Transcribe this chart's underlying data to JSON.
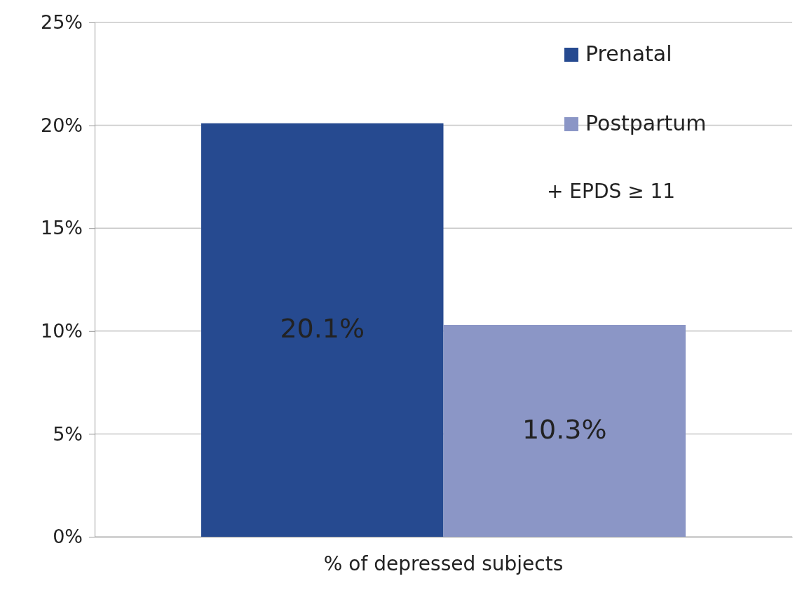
{
  "chart_data": {
    "type": "bar",
    "categories": [
      "% of depressed subjects"
    ],
    "series": [
      {
        "name": "Prenatal",
        "color": "#264a90",
        "values": [
          20.1
        ],
        "value_labels": [
          "20.1%"
        ]
      },
      {
        "name": "Postpartum",
        "color": "#8b96c6",
        "values": [
          10.3
        ],
        "value_labels": [
          "10.3%"
        ]
      }
    ],
    "ylim": [
      0,
      25
    ],
    "yticks": [
      {
        "value": 0,
        "label": "0%"
      },
      {
        "value": 5,
        "label": "5%"
      },
      {
        "value": 10,
        "label": "10%"
      },
      {
        "value": 15,
        "label": "15%"
      },
      {
        "value": 20,
        "label": "20%"
      },
      {
        "value": 25,
        "label": "25%"
      }
    ],
    "grid": "y",
    "legend": "top right",
    "annotations": [
      "+ EPDS ≥ 11"
    ]
  }
}
